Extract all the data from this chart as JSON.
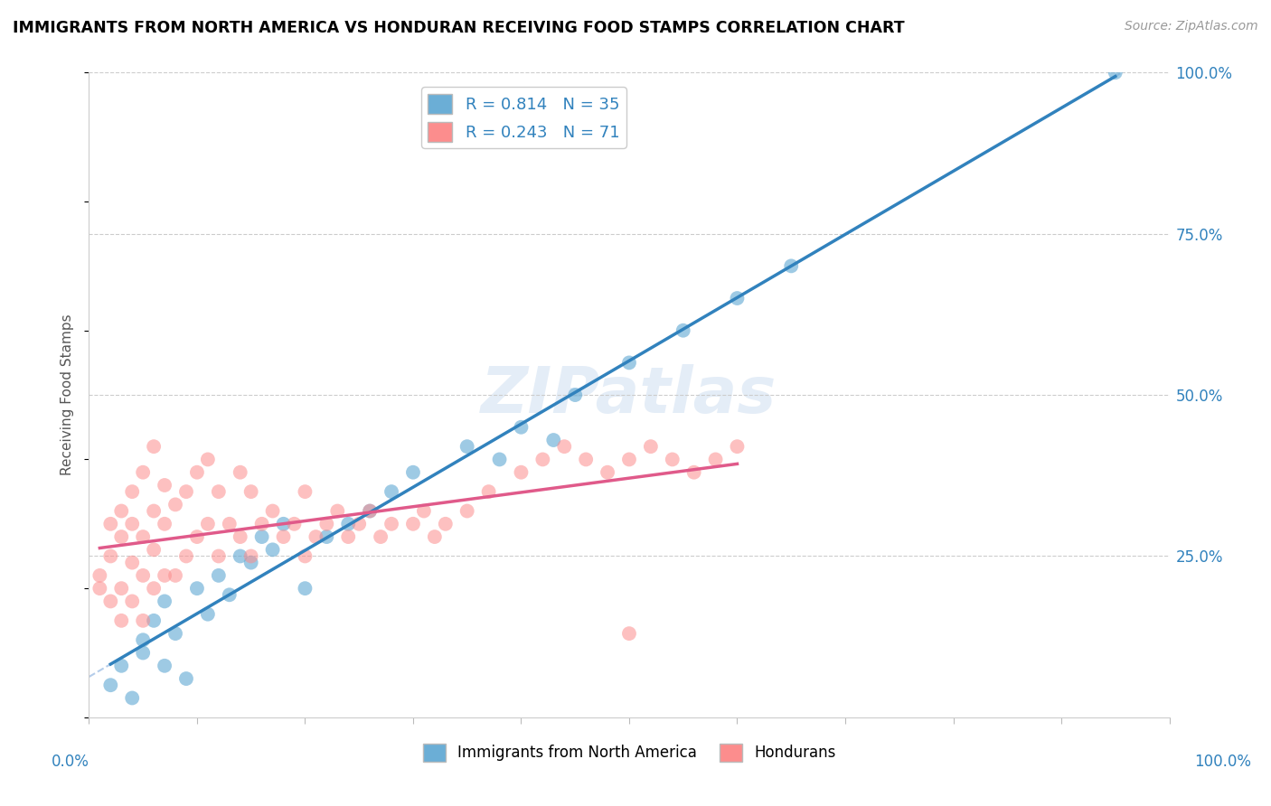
{
  "title": "IMMIGRANTS FROM NORTH AMERICA VS HONDURAN RECEIVING FOOD STAMPS CORRELATION CHART",
  "source": "Source: ZipAtlas.com",
  "ylabel": "Receiving Food Stamps",
  "xlim": [
    0.0,
    1.0
  ],
  "ylim": [
    0.0,
    1.0
  ],
  "ytick_positions": [
    0.25,
    0.5,
    0.75,
    1.0
  ],
  "blue_color": "#6baed6",
  "pink_color": "#fc8d8d",
  "blue_line_color": "#3182bd",
  "pink_line_color": "#e05a8a",
  "blue_dashed_color": "#adc8e8",
  "legend_label_blue": "R = 0.814   N = 35",
  "legend_label_pink": "R = 0.243   N = 71",
  "bottom_legend_blue": "Immigrants from North America",
  "bottom_legend_pink": "Hondurans",
  "watermark": "ZIPatlas",
  "blue_scatter_x": [
    0.02,
    0.03,
    0.04,
    0.05,
    0.05,
    0.06,
    0.07,
    0.07,
    0.08,
    0.09,
    0.1,
    0.11,
    0.12,
    0.13,
    0.14,
    0.15,
    0.16,
    0.17,
    0.18,
    0.2,
    0.22,
    0.24,
    0.26,
    0.28,
    0.3,
    0.35,
    0.38,
    0.4,
    0.43,
    0.45,
    0.5,
    0.55,
    0.6,
    0.65,
    0.95
  ],
  "blue_scatter_y": [
    0.05,
    0.08,
    0.03,
    0.1,
    0.12,
    0.15,
    0.08,
    0.18,
    0.13,
    0.06,
    0.2,
    0.16,
    0.22,
    0.19,
    0.25,
    0.24,
    0.28,
    0.26,
    0.3,
    0.2,
    0.28,
    0.3,
    0.32,
    0.35,
    0.38,
    0.42,
    0.4,
    0.45,
    0.43,
    0.5,
    0.55,
    0.6,
    0.65,
    0.7,
    1.0
  ],
  "pink_scatter_x": [
    0.01,
    0.01,
    0.02,
    0.02,
    0.02,
    0.03,
    0.03,
    0.03,
    0.03,
    0.04,
    0.04,
    0.04,
    0.04,
    0.05,
    0.05,
    0.05,
    0.05,
    0.06,
    0.06,
    0.06,
    0.06,
    0.07,
    0.07,
    0.07,
    0.08,
    0.08,
    0.09,
    0.09,
    0.1,
    0.1,
    0.11,
    0.11,
    0.12,
    0.12,
    0.13,
    0.14,
    0.14,
    0.15,
    0.15,
    0.16,
    0.17,
    0.18,
    0.19,
    0.2,
    0.2,
    0.21,
    0.22,
    0.23,
    0.24,
    0.25,
    0.26,
    0.27,
    0.28,
    0.3,
    0.31,
    0.32,
    0.33,
    0.35,
    0.37,
    0.4,
    0.42,
    0.44,
    0.46,
    0.48,
    0.5,
    0.52,
    0.54,
    0.56,
    0.58,
    0.6,
    0.5
  ],
  "pink_scatter_y": [
    0.2,
    0.22,
    0.18,
    0.25,
    0.3,
    0.15,
    0.2,
    0.28,
    0.32,
    0.18,
    0.24,
    0.3,
    0.35,
    0.15,
    0.22,
    0.28,
    0.38,
    0.2,
    0.26,
    0.32,
    0.42,
    0.22,
    0.3,
    0.36,
    0.22,
    0.33,
    0.25,
    0.35,
    0.28,
    0.38,
    0.3,
    0.4,
    0.25,
    0.35,
    0.3,
    0.28,
    0.38,
    0.25,
    0.35,
    0.3,
    0.32,
    0.28,
    0.3,
    0.25,
    0.35,
    0.28,
    0.3,
    0.32,
    0.28,
    0.3,
    0.32,
    0.28,
    0.3,
    0.3,
    0.32,
    0.28,
    0.3,
    0.32,
    0.35,
    0.38,
    0.4,
    0.42,
    0.4,
    0.38,
    0.4,
    0.42,
    0.4,
    0.38,
    0.4,
    0.42,
    0.13
  ]
}
